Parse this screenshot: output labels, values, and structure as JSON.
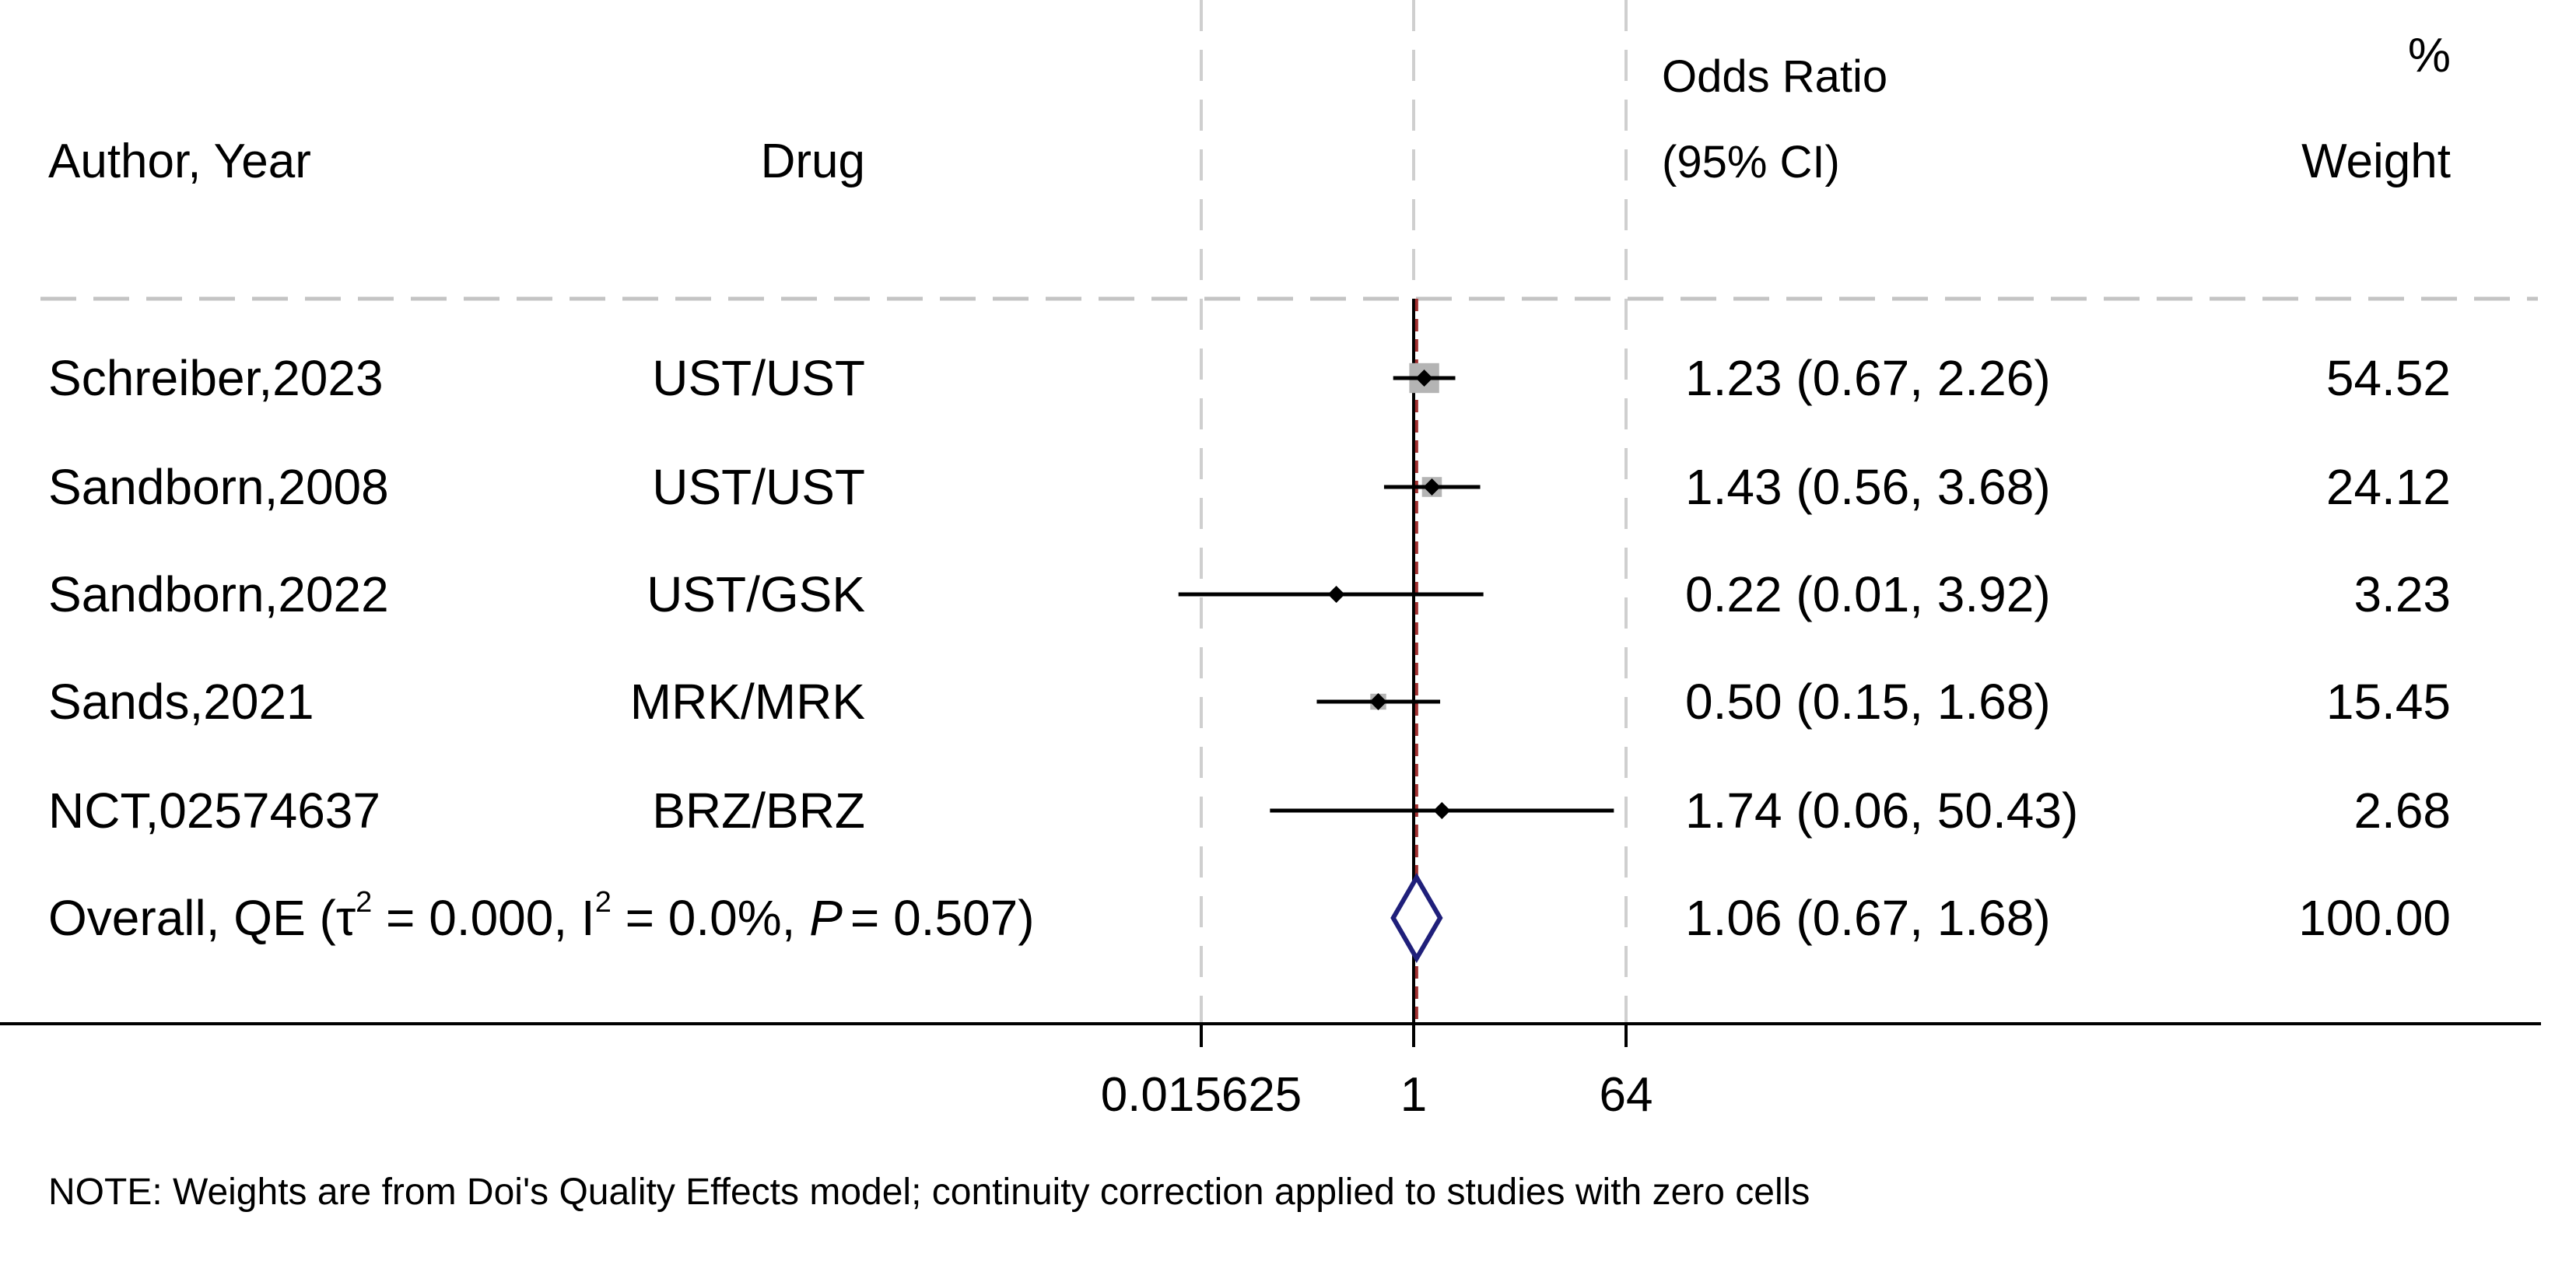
{
  "headers": {
    "author": "Author, Year",
    "drug": "Drug",
    "or_line1": "Odds Ratio",
    "or_line2": "(95% CI)",
    "weight_line1": "%",
    "weight_line2": "Weight"
  },
  "note": "NOTE: Weights are from Doi's Quality Effects model; continuity correction applied to studies with zero cells",
  "overall_label": {
    "prefix": "Overall, QE (",
    "tau": "τ",
    "sup2": "2",
    "mid1": " = 0.000, ",
    "i": "I",
    "mid2": " = 0.0%, ",
    "p": "P",
    "suffix": "= 0.507)"
  },
  "colors": {
    "diamond": "#1f1f7a",
    "reference_line": "#a03030",
    "weight_box": "#b4b4b4",
    "dashed": "#cfcfcf",
    "axis": "#000000"
  },
  "chart_data": {
    "type": "forest",
    "measure": "Odds Ratio",
    "scale": "log2",
    "xlim": [
      0.015625,
      64
    ],
    "ticks": [
      "0.015625",
      "1",
      "64"
    ],
    "tick_values": [
      0.015625,
      1,
      64
    ],
    "reference_value": 1,
    "studies": [
      {
        "author": "Schreiber,2023",
        "drug": "UST/UST",
        "or": 1.23,
        "lo": 0.67,
        "hi": 2.26,
        "ci_text": "1.23 (0.67, 2.26)",
        "weight": 54.52,
        "weight_text": "54.52"
      },
      {
        "author": "Sandborn,2008",
        "drug": "UST/UST",
        "or": 1.43,
        "lo": 0.56,
        "hi": 3.68,
        "ci_text": "1.43 (0.56, 3.68)",
        "weight": 24.12,
        "weight_text": "24.12"
      },
      {
        "author": "Sandborn,2022",
        "drug": "UST/GSK",
        "or": 0.22,
        "lo": 0.01,
        "hi": 3.92,
        "ci_text": "0.22 (0.01, 3.92)",
        "weight": 3.23,
        "weight_text": "3.23"
      },
      {
        "author": "Sands,2021",
        "drug": "MRK/MRK",
        "or": 0.5,
        "lo": 0.15,
        "hi": 1.68,
        "ci_text": "0.50 (0.15, 1.68)",
        "weight": 15.45,
        "weight_text": "15.45"
      },
      {
        "author": "NCT,02574637",
        "drug": "BRZ/BRZ",
        "or": 1.74,
        "lo": 0.06,
        "hi": 50.43,
        "ci_text": "1.74 (0.06, 50.43)",
        "weight": 2.68,
        "weight_text": "2.68"
      }
    ],
    "overall": {
      "or": 1.06,
      "lo": 0.67,
      "hi": 1.68,
      "ci_text": "1.06 (0.67, 1.68)",
      "weight": 100.0,
      "weight_text": "100.00"
    }
  }
}
